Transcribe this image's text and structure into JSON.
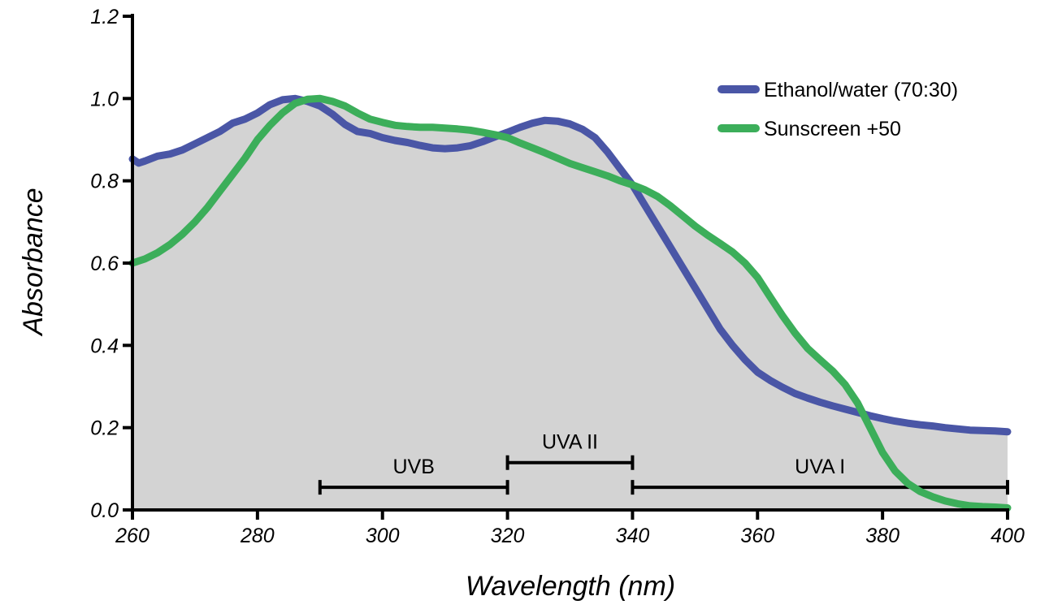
{
  "chart_data": {
    "type": "line",
    "title": "",
    "xlabel": "Wavelength (nm)",
    "ylabel": "Absorbance",
    "xlim": [
      260,
      400
    ],
    "ylim": [
      0.0,
      1.2
    ],
    "x_ticks": [
      260,
      280,
      300,
      320,
      340,
      360,
      380,
      400
    ],
    "x_tick_labels": [
      "260",
      "280",
      "300",
      "320",
      "340",
      "360",
      "380",
      "400"
    ],
    "y_ticks": [
      0.0,
      0.2,
      0.4,
      0.6,
      0.8,
      1.0,
      1.2
    ],
    "y_tick_labels": [
      "0.0",
      "0.2",
      "0.4",
      "0.6",
      "0.8",
      "1.0",
      "1.2"
    ],
    "grid": false,
    "legend_position": "top-right",
    "shaded_area": {
      "color": "#d3d3d3",
      "description_x": [
        260,
        400
      ]
    },
    "series": [
      {
        "name": "Ethanol/water (70:30)",
        "color": "#4a56a6",
        "x": [
          260,
          261,
          262,
          264,
          266,
          268,
          270,
          272,
          274,
          276,
          278,
          280,
          282,
          284,
          286,
          288,
          290,
          292,
          294,
          296,
          298,
          300,
          302,
          304,
          306,
          308,
          310,
          312,
          314,
          316,
          318,
          320,
          322,
          324,
          326,
          328,
          330,
          332,
          334,
          336,
          338,
          340,
          342,
          344,
          346,
          348,
          350,
          352,
          354,
          356,
          358,
          360,
          362,
          364,
          366,
          368,
          370,
          372,
          374,
          376,
          378,
          380,
          382,
          384,
          386,
          388,
          390,
          392,
          394,
          396,
          398,
          400
        ],
        "y": [
          0.853,
          0.843,
          0.848,
          0.86,
          0.865,
          0.875,
          0.89,
          0.905,
          0.92,
          0.94,
          0.95,
          0.965,
          0.985,
          0.997,
          1.0,
          0.993,
          0.982,
          0.962,
          0.937,
          0.92,
          0.915,
          0.905,
          0.898,
          0.893,
          0.886,
          0.88,
          0.878,
          0.88,
          0.885,
          0.895,
          0.907,
          0.918,
          0.93,
          0.94,
          0.947,
          0.945,
          0.938,
          0.925,
          0.905,
          0.87,
          0.83,
          0.79,
          0.74,
          0.69,
          0.64,
          0.59,
          0.54,
          0.49,
          0.44,
          0.4,
          0.365,
          0.335,
          0.315,
          0.298,
          0.283,
          0.272,
          0.262,
          0.253,
          0.245,
          0.237,
          0.229,
          0.222,
          0.216,
          0.211,
          0.207,
          0.204,
          0.2,
          0.197,
          0.194,
          0.193,
          0.192,
          0.19
        ]
      },
      {
        "name": "Sunscreen +50",
        "color": "#3cae5a",
        "x": [
          260,
          262,
          264,
          266,
          268,
          270,
          272,
          274,
          276,
          278,
          280,
          282,
          284,
          286,
          288,
          290,
          292,
          294,
          296,
          298,
          300,
          302,
          304,
          306,
          308,
          310,
          312,
          314,
          316,
          318,
          320,
          322,
          324,
          326,
          328,
          330,
          332,
          334,
          336,
          338,
          340,
          342,
          344,
          346,
          348,
          350,
          352,
          354,
          356,
          358,
          360,
          362,
          364,
          366,
          368,
          370,
          372,
          374,
          376,
          378,
          380,
          382,
          384,
          386,
          388,
          390,
          392,
          394,
          396,
          398,
          400
        ],
        "y": [
          0.6,
          0.61,
          0.625,
          0.645,
          0.67,
          0.7,
          0.735,
          0.775,
          0.815,
          0.855,
          0.9,
          0.935,
          0.965,
          0.988,
          0.998,
          1.0,
          0.993,
          0.982,
          0.965,
          0.95,
          0.942,
          0.935,
          0.932,
          0.93,
          0.93,
          0.928,
          0.926,
          0.923,
          0.918,
          0.912,
          0.905,
          0.892,
          0.88,
          0.868,
          0.855,
          0.842,
          0.832,
          0.822,
          0.812,
          0.8,
          0.79,
          0.778,
          0.762,
          0.74,
          0.715,
          0.69,
          0.668,
          0.648,
          0.627,
          0.6,
          0.565,
          0.518,
          0.472,
          0.43,
          0.393,
          0.365,
          0.338,
          0.305,
          0.26,
          0.2,
          0.14,
          0.095,
          0.065,
          0.045,
          0.032,
          0.022,
          0.015,
          0.01,
          0.008,
          0.007,
          0.005
        ]
      }
    ],
    "bands": [
      {
        "label": "UVB",
        "start": 290,
        "end": 320,
        "level": 0.055
      },
      {
        "label": "UVA II",
        "start": 320,
        "end": 340,
        "level": 0.115
      },
      {
        "label": "UVA I",
        "start": 340,
        "end": 400,
        "level": 0.055
      }
    ]
  }
}
